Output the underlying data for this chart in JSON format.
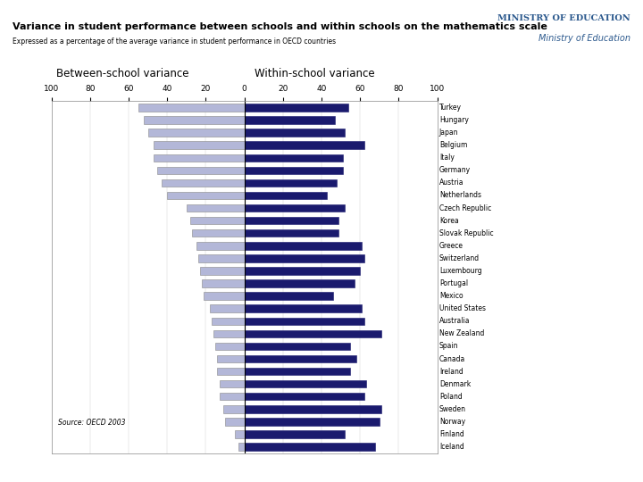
{
  "title": "Variance in student performance between schools and within schools on the mathematics scale",
  "subtitle": "Expressed as a percentage of the average variance in student performance in OECD countries",
  "countries": [
    "Turkey",
    "Hungary",
    "Japan",
    "Belgium",
    "Italy",
    "Germany",
    "Austria",
    "Netherlands",
    "Czech Republic",
    "Korea",
    "Slovak Republic",
    "Greece",
    "Switzerland",
    "Luxembourg",
    "Portugal",
    "Mexico",
    "United States",
    "Australia",
    "New Zealand",
    "Spain",
    "Canada",
    "Ireland",
    "Denmark",
    "Poland",
    "Sweden",
    "Norway",
    "Finland",
    "Iceland"
  ],
  "between_school": [
    55,
    52,
    50,
    47,
    47,
    45,
    43,
    40,
    30,
    28,
    27,
    25,
    24,
    23,
    22,
    21,
    18,
    17,
    16,
    15,
    14,
    14,
    13,
    13,
    11,
    10,
    5,
    3
  ],
  "within_school": [
    54,
    47,
    52,
    62,
    51,
    51,
    48,
    43,
    52,
    49,
    49,
    61,
    62,
    60,
    57,
    46,
    61,
    62,
    71,
    55,
    58,
    55,
    63,
    62,
    71,
    70,
    52,
    68
  ],
  "between_color": "#b3b7d8",
  "within_color": "#1a1a6e",
  "background_color": "#ffffff",
  "source_text": "Source: OECD 2003",
  "axis_max": 100
}
